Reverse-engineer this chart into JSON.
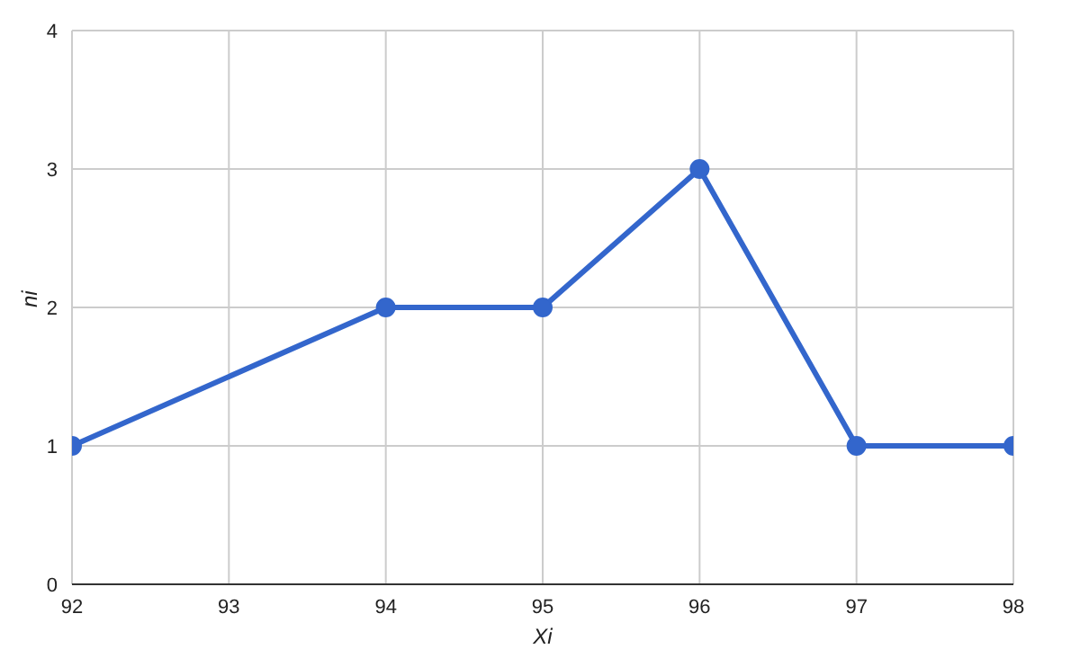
{
  "chart_data": {
    "type": "line",
    "xlabel": "Xi",
    "ylabel": "ni",
    "x": [
      92,
      94,
      95,
      96,
      97,
      98
    ],
    "series": [
      {
        "color": "#3366cc",
        "values": [
          1,
          2,
          2,
          3,
          1,
          1
        ]
      }
    ],
    "xlim": [
      92,
      98
    ],
    "xticks": [
      92,
      93,
      94,
      95,
      96,
      97,
      98
    ],
    "ylim": [
      0,
      4
    ],
    "yticks": [
      0,
      1,
      2,
      3,
      4
    ],
    "grid": true,
    "legend": false,
    "marker": "circle",
    "line_style": "solid"
  }
}
